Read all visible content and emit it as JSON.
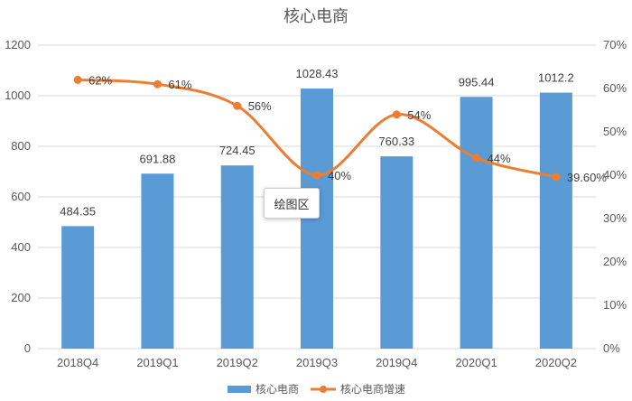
{
  "chart_data": {
    "type": "bar",
    "title": "核心电商",
    "categories": [
      "2018Q4",
      "2019Q1",
      "2019Q2",
      "2019Q3",
      "2019Q4",
      "2020Q1",
      "2020Q2"
    ],
    "series": [
      {
        "name": "核心电商",
        "type": "bar",
        "axis": "left",
        "values": [
          484.35,
          691.88,
          724.45,
          1028.43,
          760.33,
          995.44,
          1012.2
        ],
        "labels": [
          "484.35",
          "691.88",
          "724.45",
          "1028.43",
          "760.33",
          "995.44",
          "1012.2"
        ]
      },
      {
        "name": "核心电商增速",
        "type": "line",
        "smooth": true,
        "axis": "right",
        "values": [
          0.62,
          0.61,
          0.56,
          0.4,
          0.54,
          0.44,
          0.396
        ],
        "labels": [
          "62%",
          "61%",
          "56%",
          "40%",
          "54%",
          "44%",
          "39.60%"
        ]
      }
    ],
    "y_left": {
      "min": 0,
      "max": 1200,
      "ticks": [
        "0",
        "200",
        "400",
        "600",
        "800",
        "1000",
        "1200"
      ]
    },
    "y_right": {
      "min": 0,
      "max": 0.7,
      "ticks": [
        "0%",
        "10%",
        "20%",
        "30%",
        "40%",
        "50%",
        "60%",
        "70%"
      ]
    },
    "grid": true,
    "legend_position": "bottom",
    "colors": {
      "bar": "#5b9bd5",
      "line": "#ed7d31",
      "grid": "#d9d9d9",
      "text": "#595959"
    }
  },
  "tooltip": {
    "text": "绘图区"
  }
}
